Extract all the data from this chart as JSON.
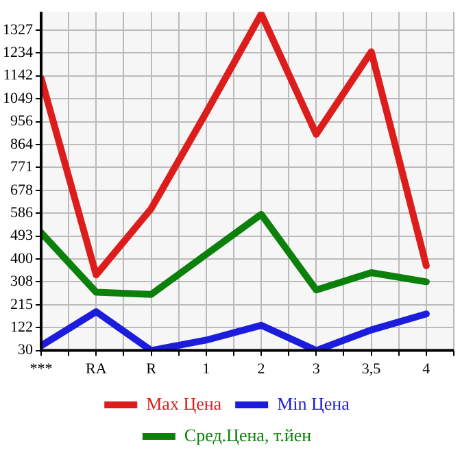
{
  "chart_data": {
    "type": "line",
    "categories": [
      "***",
      "RA",
      "R",
      "1",
      "2",
      "3",
      "3,5",
      "4"
    ],
    "series": [
      {
        "name": "Max Цена",
        "color": "#dd1c1c",
        "values": [
          1132,
          336,
          604,
          993,
          1392,
          905,
          1239,
          373
        ]
      },
      {
        "name": "Min Цена",
        "color": "#1c1cdd",
        "values": [
          49,
          187,
          30,
          72,
          132,
          30,
          113,
          178
        ]
      },
      {
        "name": "Сред.Цена, т.йен",
        "color": "#0b800b",
        "values": [
          507,
          266,
          257,
          419,
          581,
          275,
          345,
          308
        ]
      }
    ],
    "ylim": [
      30,
      1401
    ],
    "yticks": [
      30,
      122,
      215,
      308,
      400,
      493,
      586,
      678,
      771,
      864,
      956,
      1049,
      1142,
      1234,
      1327
    ],
    "grid": true,
    "legend": "bottom",
    "marker": "none",
    "line_style": "solid"
  }
}
